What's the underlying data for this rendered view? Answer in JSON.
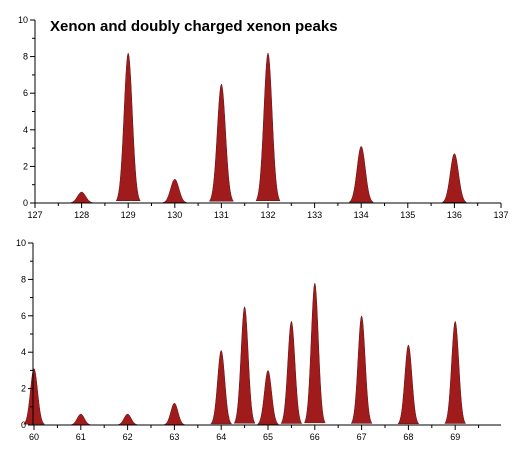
{
  "chart_data": [
    {
      "type": "area",
      "title": "Xenon and doubly charged xenon peaks",
      "xlabel": "",
      "ylabel": "",
      "xlim": [
        127,
        137
      ],
      "ylim": [
        0,
        10
      ],
      "x_ticks": [
        "127",
        "128",
        "129",
        "130",
        "131",
        "132",
        "133",
        "134",
        "135",
        "136",
        "137"
      ],
      "y_ticks": [
        "0",
        "2",
        "4",
        "6",
        "8",
        "10"
      ],
      "grid": false,
      "peaks": [
        {
          "x": 128,
          "y": 0.6
        },
        {
          "x": 129,
          "y": 8.2
        },
        {
          "x": 130,
          "y": 1.3
        },
        {
          "x": 131,
          "y": 6.5
        },
        {
          "x": 132,
          "y": 8.2
        },
        {
          "x": 134,
          "y": 3.1
        },
        {
          "x": 136,
          "y": 2.7
        }
      ],
      "color": "#a01c1c"
    },
    {
      "type": "area",
      "title": "",
      "xlabel": "",
      "ylabel": "",
      "xlim": [
        60,
        70
      ],
      "ylim": [
        0,
        10
      ],
      "x_ticks": [
        "60",
        "61",
        "62",
        "63",
        "64",
        "65",
        "66",
        "67",
        "68",
        "69"
      ],
      "y_ticks": [
        "0",
        "2",
        "4",
        "6",
        "8",
        "10"
      ],
      "grid": false,
      "peaks": [
        {
          "x": 60,
          "y": 3.1
        },
        {
          "x": 61,
          "y": 0.6
        },
        {
          "x": 62,
          "y": 0.6
        },
        {
          "x": 63,
          "y": 1.2
        },
        {
          "x": 64,
          "y": 4.1
        },
        {
          "x": 64.5,
          "y": 6.5
        },
        {
          "x": 65,
          "y": 3.0
        },
        {
          "x": 65.5,
          "y": 5.7
        },
        {
          "x": 66,
          "y": 7.8
        },
        {
          "x": 67,
          "y": 6.0
        },
        {
          "x": 68,
          "y": 4.4
        },
        {
          "x": 69,
          "y": 5.7
        }
      ],
      "color": "#a01c1c"
    }
  ]
}
